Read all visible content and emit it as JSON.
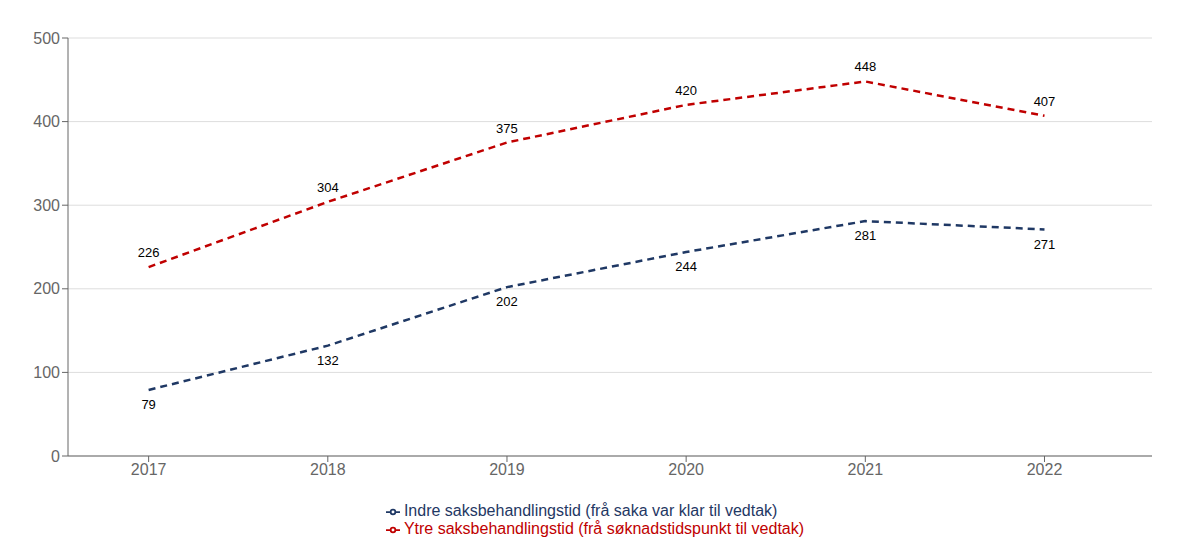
{
  "chart_data": {
    "type": "line",
    "x": [
      2017,
      2018,
      2019,
      2020,
      2021,
      2022
    ],
    "xlim": [
      2016.55,
      2022.6
    ],
    "xticks": [
      2017,
      2018,
      2019,
      2020,
      2021,
      2022
    ],
    "ylim": [
      0,
      500
    ],
    "yticks": [
      0,
      100,
      200,
      300,
      400,
      500
    ],
    "grid": "y",
    "legend": "bottom",
    "data_labels": true,
    "series": [
      {
        "name": "Indre saksbehandlingstid (frå saka var klar til vedtak)",
        "color": "#1f3864",
        "line_style": "dashed",
        "values": [
          79,
          132,
          202,
          244,
          281,
          271
        ]
      },
      {
        "name": "Ytre saksbehandlingstid (frå søknadstidspunkt til vedtak)",
        "color": "#c00000",
        "line_style": "dashed",
        "values": [
          226,
          304,
          375,
          420,
          448,
          407
        ]
      }
    ]
  }
}
